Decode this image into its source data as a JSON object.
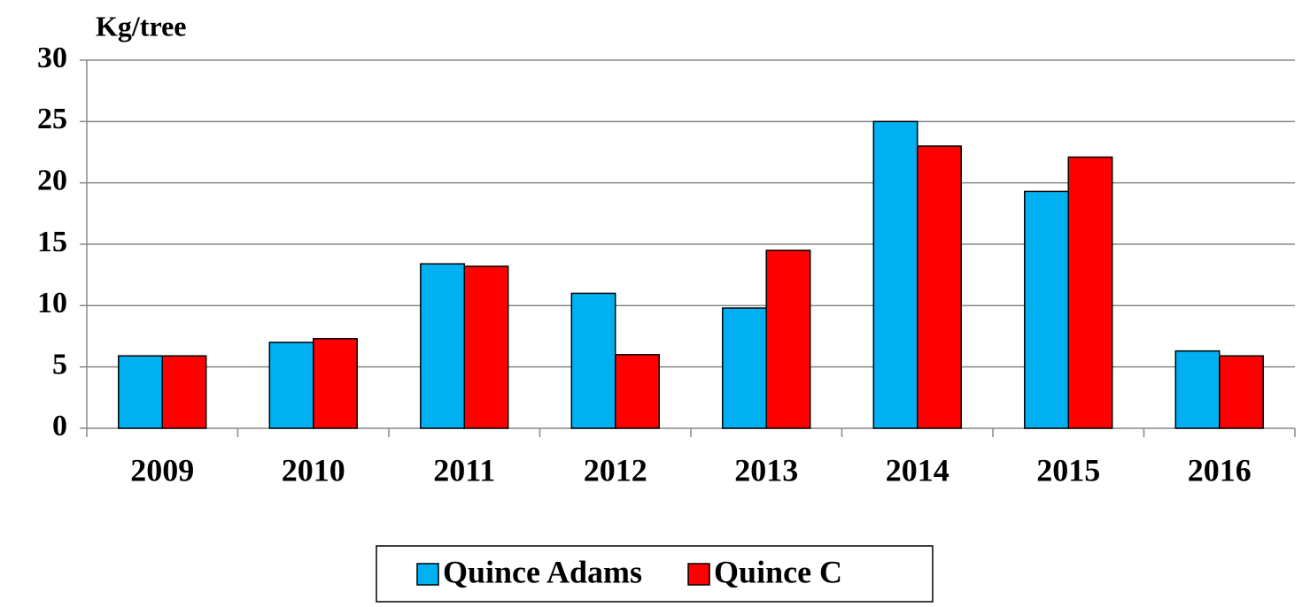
{
  "chart_data": {
    "type": "bar",
    "ylabel": "Kg/tree",
    "categories": [
      "2009",
      "2010",
      "2011",
      "2012",
      "2013",
      "2014",
      "2015",
      "2016"
    ],
    "series": [
      {
        "name": "Quince Adams",
        "color": "#00b0f0",
        "values": [
          5.9,
          7.0,
          13.4,
          11.0,
          9.8,
          25.0,
          19.3,
          6.3
        ]
      },
      {
        "name": "Quince C",
        "color": "#ff0000",
        "values": [
          5.9,
          7.3,
          13.2,
          6.0,
          14.5,
          23.0,
          22.1,
          5.9
        ]
      }
    ],
    "ylim": [
      0,
      30
    ],
    "yticks": [
      0,
      5,
      10,
      15,
      20,
      25,
      30
    ],
    "grid": true,
    "legend": "bottom"
  }
}
